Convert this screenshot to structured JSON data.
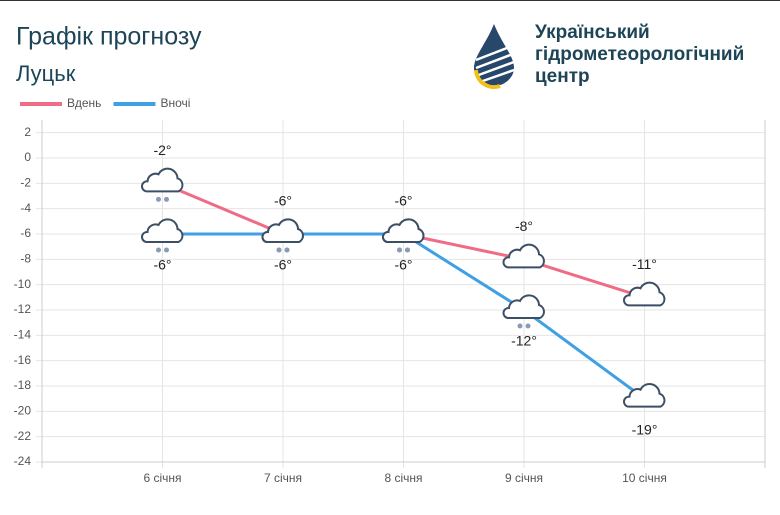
{
  "header": {
    "logo_text": [
      "Український",
      "гідрометеорологічний",
      "центр"
    ]
  },
  "chart_data": {
    "type": "line",
    "title": "Графік прогнозу",
    "subtitle": "Луцьк",
    "categories": [
      "6 січня",
      "7 січня",
      "8 січня",
      "9 січня",
      "10 січня"
    ],
    "series": [
      {
        "name": "Вдень",
        "color": "#f06b85",
        "values": [
          -2,
          -6,
          -6,
          -8,
          -11
        ],
        "value_labels": [
          "-2°",
          "-6°",
          "-6°",
          "-8°",
          "-11°"
        ]
      },
      {
        "name": "Вночі",
        "color": "#3fa0e3",
        "values": [
          -6,
          -6,
          -6,
          -12,
          -19
        ],
        "value_labels": [
          "-6°",
          "-6°",
          "-6°",
          "-12°",
          "-19°"
        ]
      }
    ],
    "ylim": [
      -24,
      3
    ],
    "yticks": [
      2,
      0,
      -2,
      -4,
      -6,
      -8,
      -10,
      -12,
      -14,
      -16,
      -18,
      -20,
      -22,
      -24
    ],
    "grid": true,
    "legend": "top-left"
  }
}
